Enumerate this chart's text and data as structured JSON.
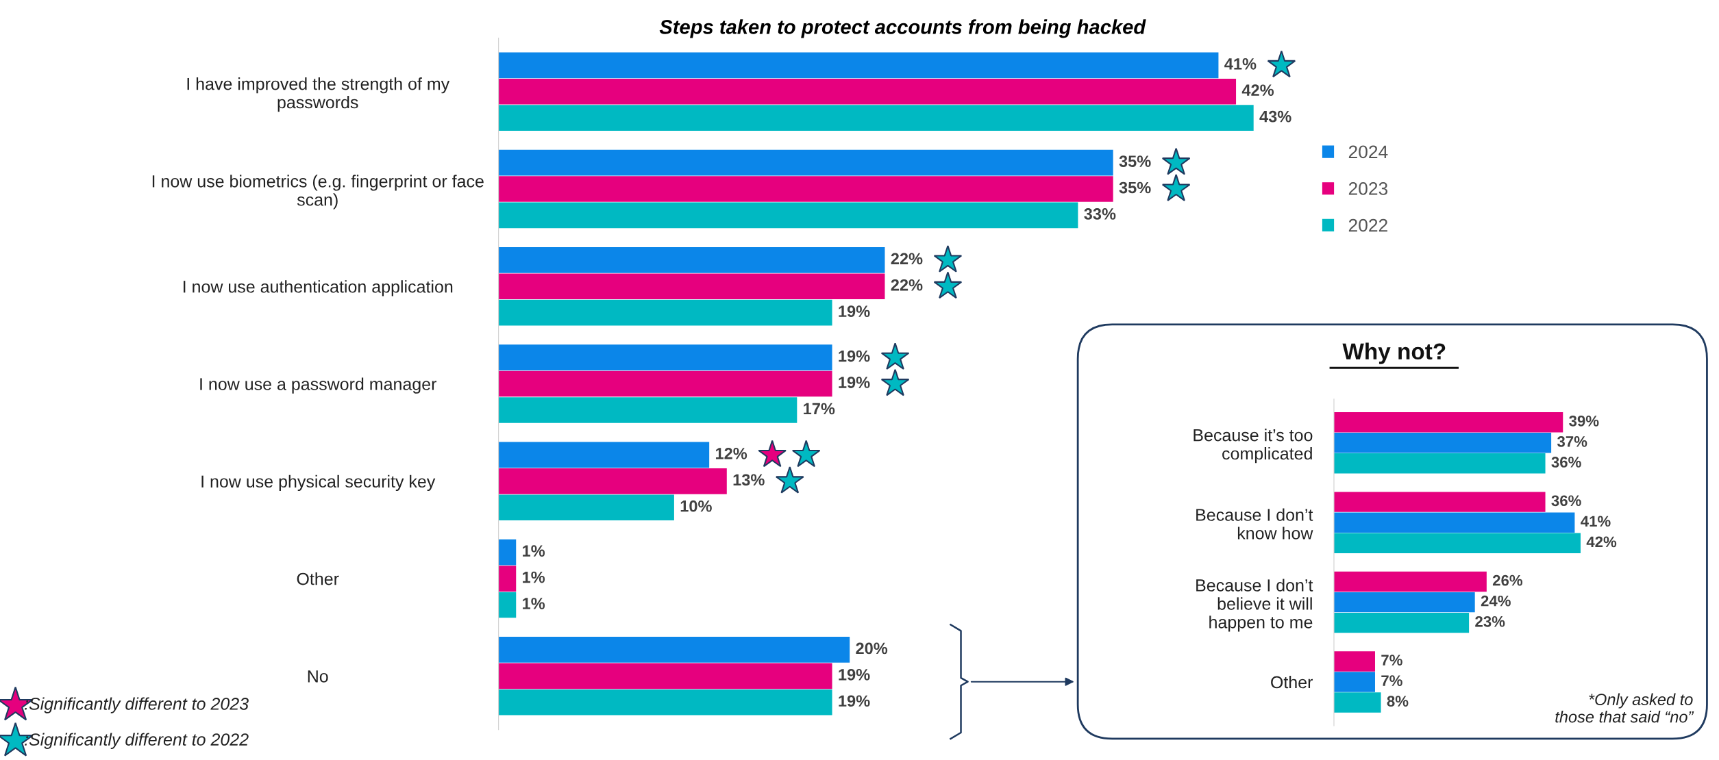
{
  "chart_data": [
    {
      "type": "bar",
      "orientation": "horizontal",
      "title": "Steps taken to protect accounts from being hacked",
      "categories": [
        "I have improved the strength of my\npasswords",
        "I now use biometrics (e.g. fingerprint or face\nscan)",
        "I now use authentication application",
        "I now use a password manager",
        "I now use physical security key",
        "Other",
        "No"
      ],
      "series": [
        {
          "name": "2024",
          "color": "#0b86e9",
          "values": [
            41,
            35,
            22,
            19,
            12,
            1,
            20
          ],
          "value_labels": [
            "41%",
            "35%",
            "22%",
            "19%",
            "12%",
            "1%",
            "20%"
          ]
        },
        {
          "name": "2023",
          "color": "#e6007e",
          "values": [
            42,
            35,
            22,
            19,
            13,
            1,
            19
          ],
          "value_labels": [
            "42%",
            "35%",
            "22%",
            "19%",
            "13%",
            "1%",
            "19%"
          ]
        },
        {
          "name": "2022",
          "color": "#00b9c2",
          "values": [
            43,
            33,
            19,
            17,
            10,
            1,
            19
          ],
          "value_labels": [
            "43%",
            "33%",
            "19%",
            "17%",
            "10%",
            "1%",
            "19%"
          ]
        }
      ],
      "legend": "right",
      "tick_labels": "y",
      "grid": false,
      "annotations": [
        ":Significantly different to 2023",
        ":Significantly different to 2022"
      ]
    },
    {
      "type": "bar",
      "orientation": "horizontal",
      "title": "Why not?",
      "categories": [
        "Because it’s too\ncomplicated",
        "Because I don’t\nknow how",
        "Because I don’t\nbelieve it will\nhappen to me",
        "Other"
      ],
      "series": [
        {
          "color": "#e6007e",
          "values": [
            39,
            36,
            26,
            7
          ],
          "value_labels": [
            "39%",
            "36%",
            "26%",
            "7%"
          ]
        },
        {
          "color": "#0b86e9",
          "values": [
            37,
            41,
            24,
            7
          ],
          "value_labels": [
            "37%",
            "41%",
            "24%",
            "7%"
          ]
        },
        {
          "color": "#00b9c2",
          "values": [
            36,
            42,
            23,
            8
          ],
          "value_labels": [
            "36%",
            "42%",
            "23%",
            "8%"
          ]
        }
      ],
      "tick_labels": "y",
      "grid": false,
      "annotations": [
        "*Only asked to\nthose that said “no”"
      ]
    }
  ]
}
